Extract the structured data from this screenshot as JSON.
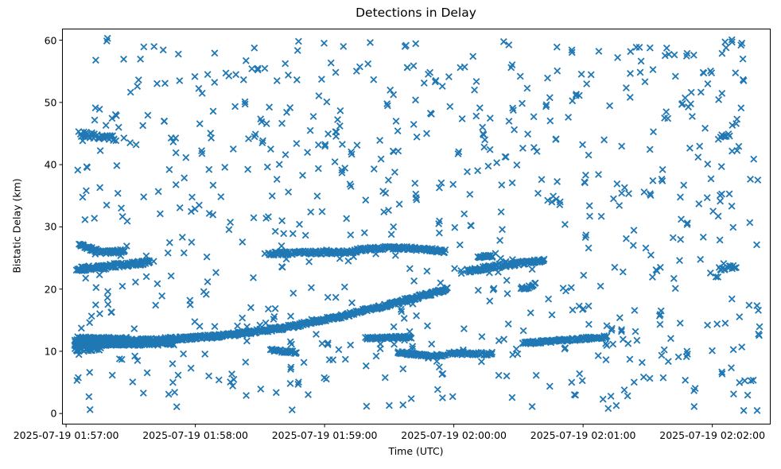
{
  "figure": {
    "background": "#ffffff",
    "text_color": "#000000"
  },
  "chart_data": {
    "type": "scatter",
    "title": "Detections in Delay",
    "xlabel": "Time (UTC)",
    "ylabel": "Bistatic Delay (km)",
    "marker": "x",
    "marker_color": "#1f77b4",
    "marker_size_px": 7.6,
    "marker_stroke_px": 1.8,
    "grid": false,
    "legend": "none",
    "x_axis": {
      "epoch": "2025-07-19 01:57:00",
      "tick_labels": [
        "2025-07-19 01:57:00",
        "2025-07-19 01:58:00",
        "2025-07-19 01:59:00",
        "2025-07-19 02:00:00",
        "2025-07-19 02:01:00",
        "2025-07-19 02:02:00"
      ],
      "tick_offsets_seconds": [
        0,
        60,
        120,
        180,
        240,
        300
      ],
      "xlim_offsets_seconds": [
        -1.7,
        326.9
      ]
    },
    "y_axis": {
      "tick_values": [
        0,
        10,
        20,
        30,
        40,
        50,
        60
      ],
      "ylim": [
        -1.7,
        61.8
      ]
    },
    "series": [
      {
        "name": "track-26km-early",
        "control_points_t_s_delay_km": [
          [
            6,
            27.2
          ],
          [
            12,
            26.4
          ],
          [
            18,
            25.9
          ],
          [
            27,
            26.1
          ]
        ],
        "points_per_second": 2.8,
        "delay_spread_km": 0.28
      },
      {
        "name": "track-24km-early",
        "control_points_t_s_delay_km": [
          [
            5,
            23.2
          ],
          [
            20,
            23.7
          ],
          [
            39,
            24.3
          ]
        ],
        "points_per_second": 3.0,
        "delay_spread_km": 0.35
      },
      {
        "name": "track-26km-mid",
        "control_points_t_s_delay_km": [
          [
            94,
            25.7
          ],
          [
            112,
            25.9
          ],
          [
            128,
            25.9
          ],
          [
            142,
            26.5
          ],
          [
            152,
            26.7
          ],
          [
            176,
            26.1
          ]
        ],
        "points_per_second": 2.6,
        "delay_spread_km": 0.28
      },
      {
        "name": "track-24km-mid",
        "control_points_t_s_delay_km": [
          [
            186,
            22.9
          ],
          [
            202,
            23.8
          ],
          [
            222,
            24.6
          ]
        ],
        "points_per_second": 3.0,
        "delay_spread_km": 0.3
      },
      {
        "name": "track-25km-short",
        "control_points_t_s_delay_km": [
          [
            191,
            25.2
          ],
          [
            198,
            25.3
          ]
        ],
        "points_per_second": 2.6,
        "delay_spread_km": 0.2
      },
      {
        "name": "blob-20km",
        "control_points_t_s_delay_km": [
          [
            211,
            20.1
          ],
          [
            218,
            20.7
          ]
        ],
        "points_per_second": 2.2,
        "delay_spread_km": 0.3
      },
      {
        "name": "track-rising-main",
        "control_points_t_s_delay_km": [
          [
            4,
            11.5
          ],
          [
            40,
            11.8
          ],
          [
            70,
            12.4
          ],
          [
            100,
            13.7
          ],
          [
            130,
            15.8
          ],
          [
            160,
            18.4
          ],
          [
            177,
            20.0
          ]
        ],
        "points_per_second": 3.2,
        "delay_spread_km": 0.3
      },
      {
        "name": "track-11km-flat",
        "control_points_t_s_delay_km": [
          [
            4,
            11.1
          ],
          [
            50,
            11.3
          ]
        ],
        "points_per_second": 2.8,
        "delay_spread_km": 0.3
      },
      {
        "name": "track-12km-early",
        "control_points_t_s_delay_km": [
          [
            5,
            12.1
          ],
          [
            28,
            12.0
          ]
        ],
        "points_per_second": 2.4,
        "delay_spread_km": 0.25
      },
      {
        "name": "track-10km-early",
        "control_points_t_s_delay_km": [
          [
            4,
            10.2
          ],
          [
            16,
            10.5
          ]
        ],
        "points_per_second": 1.8,
        "delay_spread_km": 0.35
      },
      {
        "name": "track-10km-mid",
        "control_points_t_s_delay_km": [
          [
            95,
            10.2
          ],
          [
            107,
            9.8
          ]
        ],
        "points_per_second": 2.5,
        "delay_spread_km": 0.2
      },
      {
        "name": "track-12km-mid",
        "control_points_t_s_delay_km": [
          [
            139,
            12.1
          ],
          [
            160,
            12.3
          ]
        ],
        "points_per_second": 2.5,
        "delay_spread_km": 0.2
      },
      {
        "name": "track-9km-mid",
        "control_points_t_s_delay_km": [
          [
            154,
            9.8
          ],
          [
            168,
            9.3
          ],
          [
            176,
            9.4
          ]
        ],
        "points_per_second": 2.5,
        "delay_spread_km": 0.2
      },
      {
        "name": "track-10km-late",
        "control_points_t_s_delay_km": [
          [
            178,
            9.7
          ],
          [
            198,
            9.6
          ]
        ],
        "points_per_second": 2.2,
        "delay_spread_km": 0.25
      },
      {
        "name": "track-12km-late",
        "control_points_t_s_delay_km": [
          [
            212,
            11.3
          ],
          [
            251,
            12.3
          ]
        ],
        "points_per_second": 2.8,
        "delay_spread_km": 0.22
      },
      {
        "name": "cluster-23km-late",
        "control_points_t_s_delay_km": [
          [
            303,
            23.2
          ],
          [
            311,
            23.6
          ]
        ],
        "points_per_second": 1.8,
        "delay_spread_km": 0.3
      },
      {
        "name": "cluster-44km-late",
        "control_points_t_s_delay_km": [
          [
            303,
            44.3
          ],
          [
            308,
            44.8
          ]
        ],
        "points_per_second": 1.6,
        "delay_spread_km": 0.35
      },
      {
        "name": "cluster-44km-early",
        "control_points_t_s_delay_km": [
          [
            6,
            44.9
          ],
          [
            23,
            44.3
          ]
        ],
        "points_per_second": 2.0,
        "delay_spread_km": 0.45
      }
    ],
    "clutter": {
      "kind": "uniform-random",
      "count": 690,
      "t_range_s": [
        5,
        322
      ],
      "delay_range_km": [
        0.4,
        60.0
      ],
      "twin_fraction": 0.09,
      "seed": 11
    }
  }
}
